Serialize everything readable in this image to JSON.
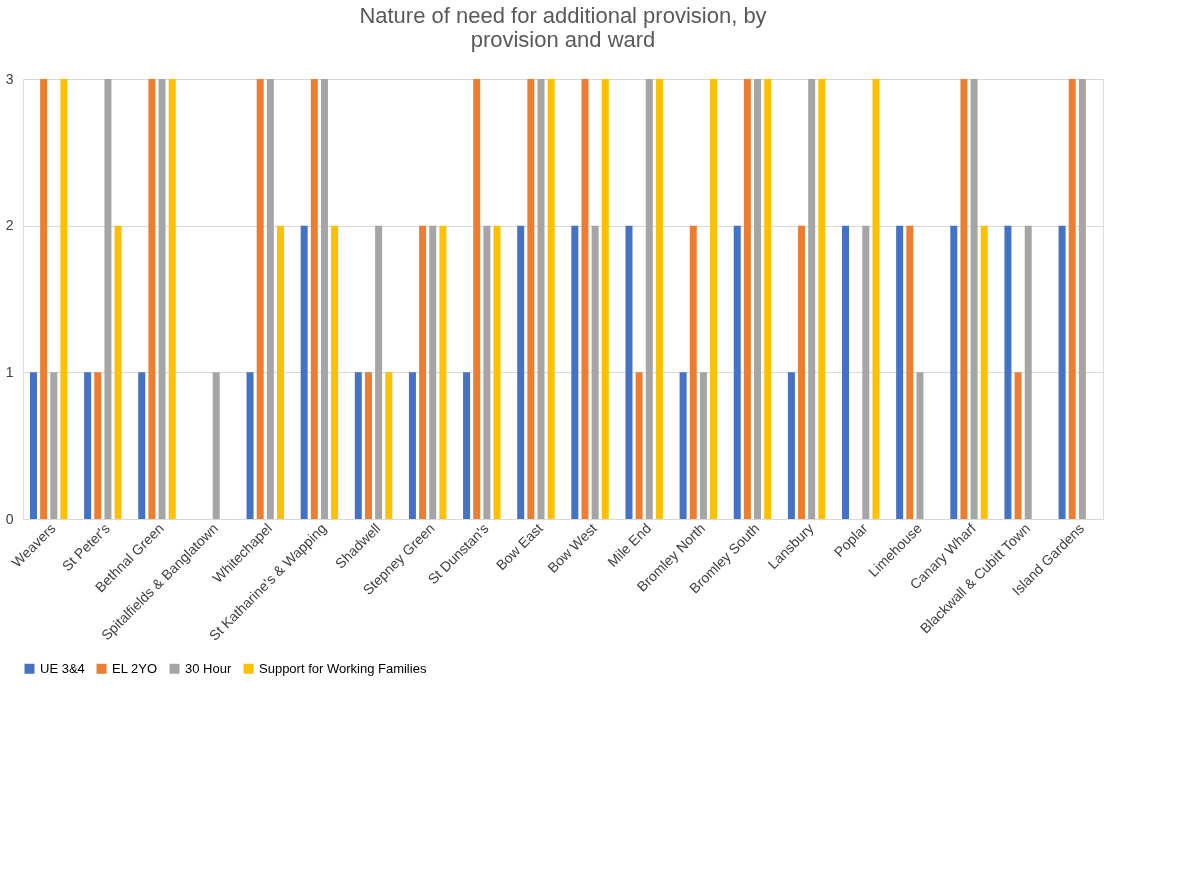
{
  "chart_data": {
    "type": "bar",
    "title": "Nature of need for additional provision, by provision and ward",
    "categories": [
      "Weavers",
      "St Peter's",
      "Bethnal Green",
      "Spitalfields & Banglatown",
      "Whitechapel",
      "St Katharine's & Wapping",
      "Shadwell",
      "Stepney Green",
      "St Dunstan's",
      "Bow East",
      "Bow West",
      "Mile End",
      "Bromley North",
      "Bromley South",
      "Lansbury",
      "Poplar",
      "Limehouse",
      "Canary Wharf",
      "Blackwall & Cubitt Town",
      "Island Gardens"
    ],
    "series": [
      {
        "name": "UE 3&4",
        "color": "#4472c4",
        "values": [
          1,
          1,
          1,
          null,
          1,
          2,
          1,
          1,
          1,
          2,
          2,
          2,
          1,
          2,
          1,
          2,
          2,
          2,
          2,
          2
        ]
      },
      {
        "name": "EL 2YO",
        "color": "#ed7d31",
        "values": [
          3,
          1,
          3,
          null,
          3,
          3,
          1,
          2,
          3,
          3,
          3,
          1,
          2,
          3,
          2,
          null,
          2,
          3,
          1,
          3
        ]
      },
      {
        "name": "30 Hour",
        "color": "#a5a5a5",
        "values": [
          1,
          3,
          3,
          1,
          3,
          3,
          2,
          2,
          2,
          3,
          2,
          3,
          1,
          3,
          3,
          2,
          1,
          3,
          2,
          3
        ]
      },
      {
        "name": "Support for Working Families",
        "color": "#ffc000",
        "values": [
          3,
          2,
          3,
          null,
          2,
          2,
          1,
          2,
          2,
          3,
          3,
          3,
          3,
          3,
          3,
          3,
          null,
          2,
          null,
          null
        ]
      }
    ],
    "ylim": [
      0,
      3
    ],
    "yticks": [
      0,
      1,
      2,
      3
    ],
    "grid": "y",
    "legend": "bottom"
  }
}
